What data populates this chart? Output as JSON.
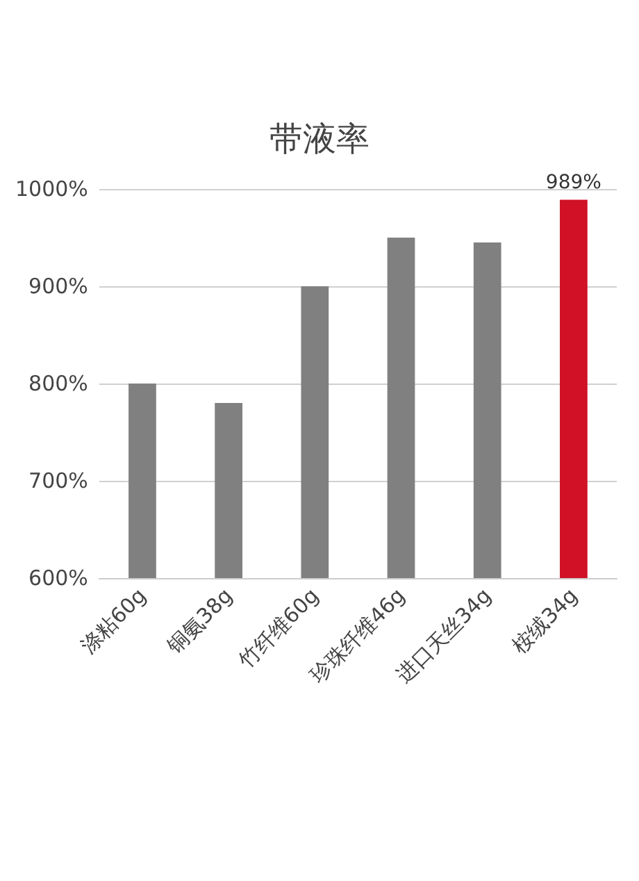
{
  "chart_data": {
    "type": "bar",
    "title": "带液率",
    "categories": [
      "涤粘60g",
      "铜氨38g",
      "竹纤维60g",
      "珍珠纤维46g",
      "进口天丝34g",
      "桉绒34g"
    ],
    "values": [
      800,
      780,
      900,
      950,
      945,
      989
    ],
    "colors": [
      "#808080",
      "#808080",
      "#808080",
      "#808080",
      "#808080",
      "#d01126"
    ],
    "value_labels": [
      null,
      null,
      null,
      null,
      null,
      "989%"
    ],
    "ylim": [
      600,
      1000
    ],
    "yticks": [
      {
        "value": 600,
        "label": "600%"
      },
      {
        "value": 700,
        "label": "700%"
      },
      {
        "value": 800,
        "label": "800%"
      },
      {
        "value": 900,
        "label": "900%"
      },
      {
        "value": 1000,
        "label": "1000%"
      }
    ],
    "grid": true
  }
}
